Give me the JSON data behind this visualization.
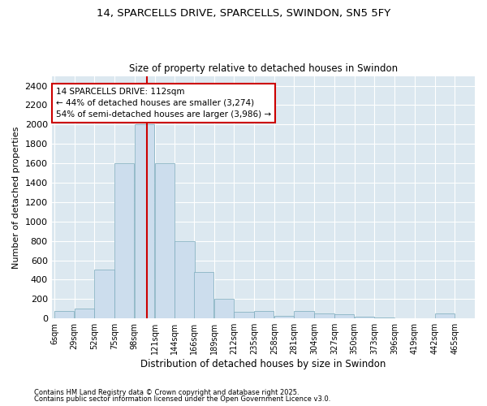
{
  "title1": "14, SPARCELLS DRIVE, SPARCELLS, SWINDON, SN5 5FY",
  "title2": "Size of property relative to detached houses in Swindon",
  "xlabel": "Distribution of detached houses by size in Swindon",
  "ylabel": "Number of detached properties",
  "annotation_title": "14 SPARCELLS DRIVE: 112sqm",
  "annotation_line1": "← 44% of detached houses are smaller (3,274)",
  "annotation_line2": "54% of semi-detached houses are larger (3,986) →",
  "footer1": "Contains HM Land Registry data © Crown copyright and database right 2025.",
  "footer2": "Contains public sector information licensed under the Open Government Licence v3.0.",
  "property_size": 112,
  "bar_color": "#ccdded",
  "bar_edge_color": "#7aaabb",
  "vline_color": "#cc0000",
  "annotation_box_color": "#ffffff",
  "annotation_box_edge": "#cc0000",
  "plot_bg_color": "#dce8f0",
  "fig_bg_color": "#ffffff",
  "grid_color": "#ffffff",
  "bins": [
    6,
    29,
    52,
    75,
    98,
    121,
    144,
    166,
    189,
    212,
    235,
    258,
    281,
    304,
    327,
    350,
    373,
    396,
    419,
    442,
    465
  ],
  "counts": [
    75,
    100,
    500,
    1600,
    2000,
    1600,
    800,
    475,
    200,
    65,
    75,
    30,
    75,
    50,
    40,
    20,
    10,
    5,
    5,
    50
  ],
  "ylim": [
    0,
    2500
  ],
  "yticks": [
    0,
    200,
    400,
    600,
    800,
    1000,
    1200,
    1400,
    1600,
    1800,
    2000,
    2200,
    2400
  ]
}
